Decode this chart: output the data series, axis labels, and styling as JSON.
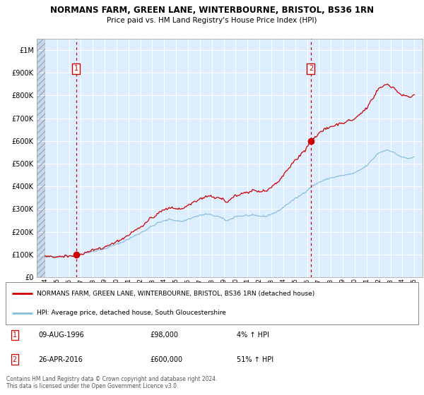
{
  "title": "NORMANS FARM, GREEN LANE, WINTERBOURNE, BRISTOL, BS36 1RN",
  "subtitle": "Price paid vs. HM Land Registry's House Price Index (HPI)",
  "legend_line1": "NORMANS FARM, GREEN LANE, WINTERBOURNE, BRISTOL, BS36 1RN (detached house)",
  "legend_line2": "HPI: Average price, detached house, South Gloucestershire",
  "annotation1_label": "1",
  "annotation1_date": "09-AUG-1996",
  "annotation1_price": "£98,000",
  "annotation1_hpi": "4% ↑ HPI",
  "annotation2_label": "2",
  "annotation2_date": "26-APR-2016",
  "annotation2_price": "£600,000",
  "annotation2_hpi": "51% ↑ HPI",
  "footer": "Contains HM Land Registry data © Crown copyright and database right 2024.\nThis data is licensed under the Open Government Licence v3.0.",
  "purchase1_year": 1996.6,
  "purchase1_value": 98000,
  "purchase2_year": 2016.32,
  "purchase2_value": 600000,
  "hpi_color": "#8bbfdd",
  "property_color": "#cc0000",
  "bg_color": "#ddeeff",
  "annotation_box_color": "#cc0000",
  "ylim_max": 1050000,
  "xlim_min": 1993.3,
  "xlim_max": 2025.7
}
